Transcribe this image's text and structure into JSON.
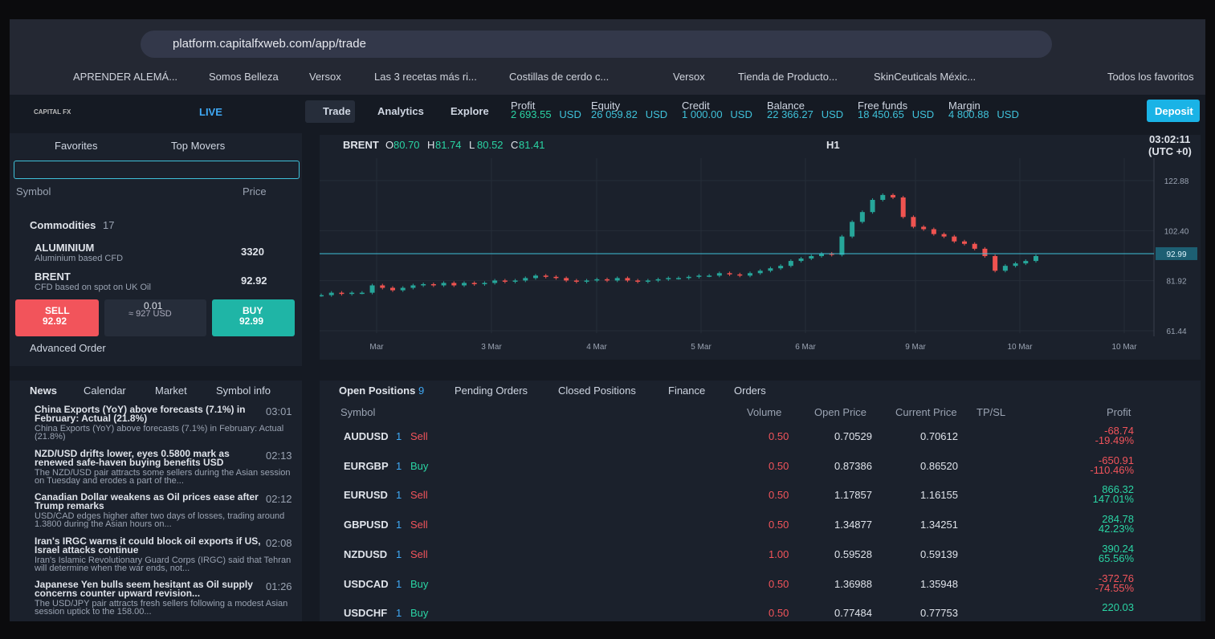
{
  "browser": {
    "url": "platform.capitalfxweb.com/app/trade",
    "bookmarks": [
      "APRENDER ALEMÁ...",
      "Somos Belleza",
      "Versox",
      "Las 3 recetas más ri...",
      "Costillas de cerdo c...",
      "Versox",
      "Tienda de Producto...",
      "SkinCeuticals Méxic..."
    ],
    "all_favorites": "Todos los favoritos"
  },
  "header": {
    "logo": "CAPITAL FX",
    "mode": "LIVE",
    "nav": [
      "Trade",
      "Analytics",
      "Explore"
    ],
    "stats": [
      {
        "label": "Profit",
        "value": "2 693.55",
        "currency": "USD"
      },
      {
        "label": "Equity",
        "value": "26 059.82",
        "currency": "USD"
      },
      {
        "label": "Credit",
        "value": "1 000.00",
        "currency": "USD"
      },
      {
        "label": "Balance",
        "value": "22 366.27",
        "currency": "USD"
      },
      {
        "label": "Free funds",
        "value": "18 450.65",
        "currency": "USD"
      },
      {
        "label": "Margin",
        "value": "4 800.88",
        "currency": "USD"
      }
    ],
    "deposit": "Deposit"
  },
  "watchlist": {
    "tabs": [
      "Favorites",
      "Top Movers"
    ],
    "columns": [
      "Symbol",
      "Price"
    ],
    "group": {
      "name": "Commodities",
      "count": "17"
    },
    "items": [
      {
        "symbol": "ALUMINIUM",
        "description": "Aluminium based CFD",
        "price": "3320"
      },
      {
        "symbol": "BRENT",
        "description": "CFD based on spot on UK Oil",
        "price": "92.92"
      }
    ],
    "trade": {
      "sell_label": "SELL",
      "sell_price": "92.92",
      "volume": "0.01",
      "volume_usd": "≈ 927 USD",
      "buy_label": "BUY",
      "buy_price": "92.99",
      "advanced": "Advanced Order"
    }
  },
  "news": {
    "tabs": [
      "News",
      "Calendar",
      "Market",
      "Symbol info"
    ],
    "items": [
      {
        "headline": "China Exports (YoY) above forecasts (7.1%) in February: Actual (21.8%)",
        "summary": "China Exports (YoY) above forecasts (7.1%) in February: Actual (21.8%)",
        "time": "03:01"
      },
      {
        "headline": "NZD/USD drifts lower, eyes 0.5800 mark as renewed safe-haven buying benefits USD",
        "summary": "The NZD/USD pair attracts some sellers during the Asian session on Tuesday and erodes a part of the...",
        "time": "02:13"
      },
      {
        "headline": "Canadian Dollar weakens as Oil prices ease after Trump remarks",
        "summary": "USD/CAD edges higher after two days of losses, trading around 1.3800 during the Asian hours on...",
        "time": "02:12"
      },
      {
        "headline": "Iran's IRGC warns it could block oil exports if US, Israel attacks continue",
        "summary": "Iran's Islamic Revolutionary Guard Corps (IRGC) said that Tehran will determine when the war ends, not...",
        "time": "02:08"
      },
      {
        "headline": "Japanese Yen bulls seem hesitant as Oil supply concerns counter upward revision...",
        "summary": "The USD/JPY pair attracts fresh sellers following a modest Asian session uptick to the 158.00...",
        "time": "01:26"
      }
    ]
  },
  "chart": {
    "type": "candlestick",
    "symbol": "BRENT",
    "ohlc": [
      {
        "label": "O",
        "value": "80.70"
      },
      {
        "label": "H",
        "value": "81.74"
      },
      {
        "label": "L",
        "value": "80.52"
      },
      {
        "label": "C",
        "value": "81.41"
      }
    ],
    "timeframe": "H1",
    "time": "03:02:11",
    "timezone": "(UTC +0)",
    "ylim": [
      60.45,
      132.08
    ],
    "yticks": [
      61.44,
      81.92,
      {
        "value": 102.4,
        "label": "102.40"
      },
      122.88
    ],
    "xlabels": [
      "Mar",
      "3 Mar",
      "4 Mar",
      "5 Mar",
      "6 Mar",
      "9 Mar",
      "10 Mar",
      "10 Mar"
    ],
    "current_price": 92.99,
    "closes": [
      76,
      77,
      76.5,
      77,
      77,
      80,
      79,
      78,
      79,
      80,
      80.5,
      80,
      81,
      80,
      81,
      80.5,
      81,
      82,
      81.5,
      82,
      83,
      84,
      83.5,
      83,
      82,
      81.5,
      82,
      82.5,
      82,
      83,
      82,
      81.5,
      82,
      82.5,
      83,
      83,
      83.5,
      84,
      84,
      85,
      84.5,
      84,
      85,
      86,
      87,
      88,
      90,
      91,
      92,
      93,
      92.5,
      100,
      106,
      110,
      115,
      117,
      116,
      108,
      104,
      103,
      101,
      100,
      98,
      97,
      95,
      92,
      86,
      88,
      89,
      90,
      92
    ]
  },
  "positions": {
    "tabs": [
      {
        "name": "Open Positions",
        "count": "9"
      },
      {
        "name": "Pending Orders"
      },
      {
        "name": "Closed Positions"
      },
      {
        "name": "Finance"
      },
      {
        "name": "Orders"
      }
    ],
    "columns": [
      "Symbol",
      "Volume",
      "Open Price",
      "Current Price",
      "TP/SL",
      "Profit"
    ],
    "rows": [
      {
        "symbol": "AUDUSD",
        "qty": "1",
        "side": "Sell",
        "volume": "0.50",
        "open": "0.70529",
        "current": "0.70612",
        "profit": "-68.74",
        "pct": "-19.49%"
      },
      {
        "symbol": "EURGBP",
        "qty": "1",
        "side": "Buy",
        "volume": "0.50",
        "open": "0.87386",
        "current": "0.86520",
        "profit": "-650.91",
        "pct": "-110.46%"
      },
      {
        "symbol": "EURUSD",
        "qty": "1",
        "side": "Sell",
        "volume": "0.50",
        "open": "1.17857",
        "current": "1.16155",
        "profit": "866.32",
        "pct": "147.01%"
      },
      {
        "symbol": "GBPUSD",
        "qty": "1",
        "side": "Sell",
        "volume": "0.50",
        "open": "1.34877",
        "current": "1.34251",
        "profit": "284.78",
        "pct": "42.23%"
      },
      {
        "symbol": "NZDUSD",
        "qty": "1",
        "side": "Sell",
        "volume": "1.00",
        "open": "0.59528",
        "current": "0.59139",
        "profit": "390.24",
        "pct": "65.56%"
      },
      {
        "symbol": "USDCAD",
        "qty": "1",
        "side": "Buy",
        "volume": "0.50",
        "open": "1.36988",
        "current": "1.35948",
        "profit": "-372.76",
        "pct": "-74.55%"
      },
      {
        "symbol": "USDCHF",
        "qty": "1",
        "side": "Buy",
        "volume": "0.50",
        "open": "0.77484",
        "current": "0.77753",
        "profit": "220.03"
      }
    ]
  }
}
